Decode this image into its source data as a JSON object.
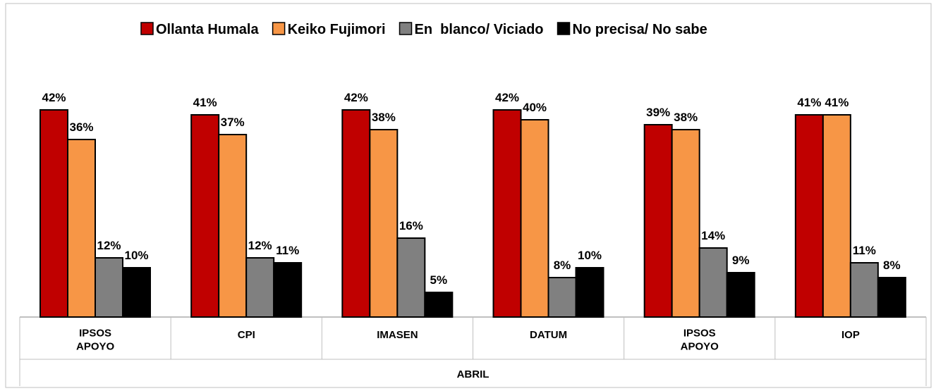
{
  "chart_data": {
    "type": "bar",
    "categories": [
      "IPSOS APOYO",
      "CPI",
      "IMASEN",
      "DATUM",
      "IPSOS APOYO",
      "IOP"
    ],
    "group_label": "ABRIL",
    "ylim": [
      0,
      50
    ],
    "legend": "top",
    "series": [
      {
        "name": "Ollanta Humala",
        "color": "#c00000",
        "values": [
          42,
          41,
          42,
          42,
          39,
          41
        ],
        "value_labels": [
          "42%",
          "41%",
          "42%",
          "42%",
          "39%",
          "41%"
        ]
      },
      {
        "name": "Keiko Fujimori",
        "color": "#f79646",
        "values": [
          36,
          37,
          38,
          40,
          38,
          41
        ],
        "value_labels": [
          "36%",
          "37%",
          "38%",
          "40%",
          "38%",
          "41%"
        ]
      },
      {
        "name": "En  blanco/ Viciado",
        "color": "#808080",
        "values": [
          12,
          12,
          16,
          8,
          14,
          11
        ],
        "value_labels": [
          "12%",
          "12%",
          "16%",
          "8%",
          "14%",
          "11%"
        ]
      },
      {
        "name": "No precisa/ No sabe",
        "color": "#000000",
        "values": [
          10,
          11,
          5,
          10,
          9,
          8
        ],
        "value_labels": [
          "10%",
          "11%",
          "5%",
          "10%",
          "9%",
          "8%"
        ]
      }
    ]
  }
}
